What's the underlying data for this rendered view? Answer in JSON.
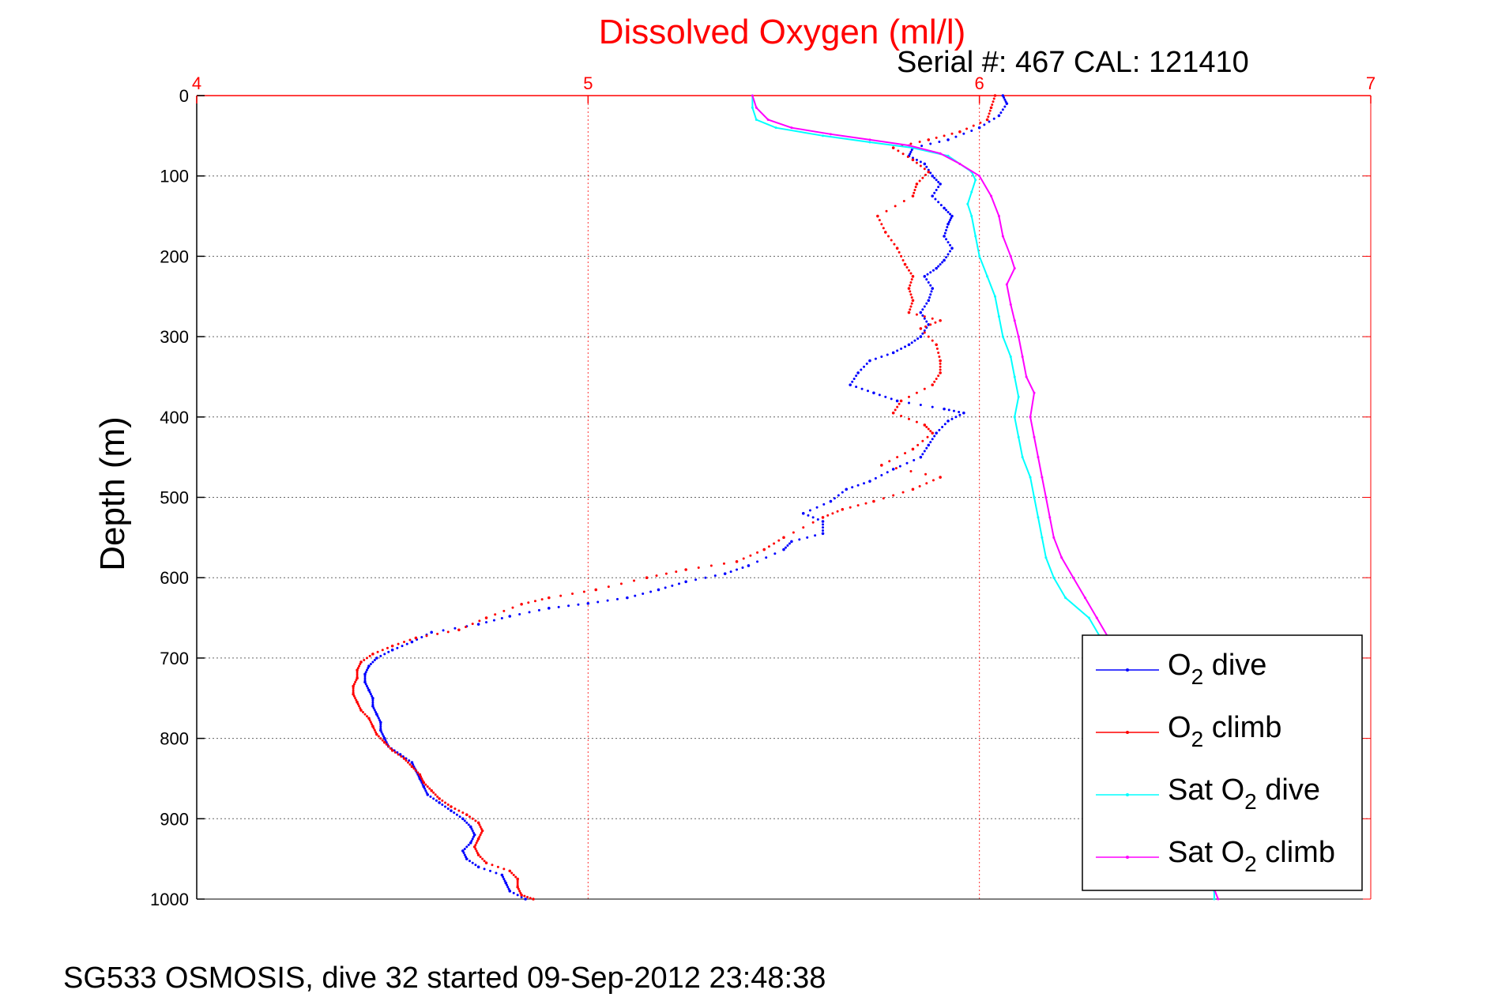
{
  "chart_data": {
    "type": "scatter",
    "title": "Dissolved Oxygen (ml/l)",
    "subtitle": "Serial #: 467  CAL: 121410",
    "ylabel": "Depth (m)",
    "footer": "SG533 OSMOSIS, dive 32 started 09-Sep-2012 23:48:38",
    "xlim": [
      4,
      7
    ],
    "ylim": [
      0,
      1000
    ],
    "y_reversed": true,
    "x_axis_position": "top",
    "grid": true,
    "legend_position": "bottom-right",
    "xticks": [
      "4",
      "5",
      "6",
      "7"
    ],
    "yticks": [
      "0",
      "100",
      "200",
      "300",
      "400",
      "500",
      "600",
      "700",
      "800",
      "900",
      "1000"
    ],
    "colors": {
      "title": "#ff0000",
      "x_axis": "#ff0000",
      "grid_x": "#ff0000",
      "o2_dive": "#0000ff",
      "o2_climb": "#ff0000",
      "sat_dive": "#00ffff",
      "sat_climb": "#ff00ff"
    },
    "series": [
      {
        "name": "O2 dive",
        "key": "o2_dive",
        "style": "dots",
        "points": [
          [
            6.06,
            0
          ],
          [
            6.07,
            10
          ],
          [
            6.05,
            25
          ],
          [
            6.0,
            40
          ],
          [
            5.92,
            55
          ],
          [
            5.83,
            65
          ],
          [
            5.82,
            75
          ],
          [
            5.86,
            85
          ],
          [
            5.88,
            100
          ],
          [
            5.9,
            110
          ],
          [
            5.88,
            125
          ],
          [
            5.91,
            140
          ],
          [
            5.93,
            150
          ],
          [
            5.92,
            160
          ],
          [
            5.91,
            175
          ],
          [
            5.93,
            190
          ],
          [
            5.91,
            205
          ],
          [
            5.89,
            215
          ],
          [
            5.86,
            225
          ],
          [
            5.88,
            240
          ],
          [
            5.87,
            255
          ],
          [
            5.85,
            270
          ],
          [
            5.87,
            285
          ],
          [
            5.85,
            300
          ],
          [
            5.82,
            310
          ],
          [
            5.78,
            320
          ],
          [
            5.72,
            330
          ],
          [
            5.69,
            345
          ],
          [
            5.67,
            360
          ],
          [
            5.73,
            370
          ],
          [
            5.79,
            380
          ],
          [
            5.91,
            390
          ],
          [
            5.96,
            395
          ],
          [
            5.92,
            405
          ],
          [
            5.89,
            420
          ],
          [
            5.87,
            435
          ],
          [
            5.85,
            450
          ],
          [
            5.78,
            465
          ],
          [
            5.72,
            480
          ],
          [
            5.66,
            490
          ],
          [
            5.62,
            505
          ],
          [
            5.55,
            520
          ],
          [
            5.6,
            530
          ],
          [
            5.6,
            545
          ],
          [
            5.52,
            555
          ],
          [
            5.5,
            565
          ],
          [
            5.41,
            585
          ],
          [
            5.35,
            595
          ],
          [
            5.25,
            605
          ],
          [
            5.18,
            615
          ],
          [
            5.1,
            625
          ],
          [
            5.0,
            632
          ],
          [
            4.9,
            638
          ],
          [
            4.8,
            648
          ],
          [
            4.72,
            658
          ],
          [
            4.6,
            668
          ],
          [
            4.55,
            680
          ],
          [
            4.5,
            690
          ],
          [
            4.46,
            700
          ],
          [
            4.44,
            710
          ],
          [
            4.43,
            720
          ],
          [
            4.43,
            730
          ],
          [
            4.44,
            740
          ],
          [
            4.45,
            750
          ],
          [
            4.45,
            760
          ],
          [
            4.46,
            770
          ],
          [
            4.47,
            780
          ],
          [
            4.47,
            790
          ],
          [
            4.48,
            800
          ],
          [
            4.49,
            810
          ],
          [
            4.52,
            820
          ],
          [
            4.55,
            830
          ],
          [
            4.56,
            840
          ],
          [
            4.57,
            850
          ],
          [
            4.58,
            860
          ],
          [
            4.59,
            870
          ],
          [
            4.62,
            880
          ],
          [
            4.65,
            890
          ],
          [
            4.68,
            900
          ],
          [
            4.7,
            910
          ],
          [
            4.71,
            920
          ],
          [
            4.7,
            930
          ],
          [
            4.68,
            940
          ],
          [
            4.69,
            950
          ],
          [
            4.72,
            960
          ],
          [
            4.78,
            970
          ],
          [
            4.79,
            980
          ],
          [
            4.8,
            990
          ],
          [
            4.84,
            1000
          ]
        ]
      },
      {
        "name": "O2 climb",
        "key": "o2_climb",
        "style": "dots",
        "points": [
          [
            6.04,
            0
          ],
          [
            6.03,
            15
          ],
          [
            6.02,
            30
          ],
          [
            5.95,
            45
          ],
          [
            5.87,
            55
          ],
          [
            5.78,
            65
          ],
          [
            5.83,
            80
          ],
          [
            5.87,
            95
          ],
          [
            5.84,
            110
          ],
          [
            5.83,
            125
          ],
          [
            5.74,
            150
          ],
          [
            5.76,
            170
          ],
          [
            5.79,
            190
          ],
          [
            5.81,
            210
          ],
          [
            5.83,
            225
          ],
          [
            5.82,
            240
          ],
          [
            5.83,
            255
          ],
          [
            5.82,
            270
          ],
          [
            5.9,
            280
          ],
          [
            5.85,
            290
          ],
          [
            5.89,
            310
          ],
          [
            5.9,
            330
          ],
          [
            5.9,
            345
          ],
          [
            5.88,
            360
          ],
          [
            5.8,
            380
          ],
          [
            5.78,
            395
          ],
          [
            5.86,
            410
          ],
          [
            5.88,
            420
          ],
          [
            5.83,
            440
          ],
          [
            5.75,
            460
          ],
          [
            5.9,
            475
          ],
          [
            5.83,
            490
          ],
          [
            5.73,
            505
          ],
          [
            5.65,
            515
          ],
          [
            5.6,
            525
          ],
          [
            5.5,
            550
          ],
          [
            5.45,
            565
          ],
          [
            5.38,
            580
          ],
          [
            5.25,
            590
          ],
          [
            5.15,
            600
          ],
          [
            5.02,
            615
          ],
          [
            4.9,
            625
          ],
          [
            4.83,
            633
          ],
          [
            4.74,
            650
          ],
          [
            4.67,
            665
          ],
          [
            4.56,
            675
          ],
          [
            4.5,
            685
          ],
          [
            4.45,
            695
          ],
          [
            4.42,
            705
          ],
          [
            4.41,
            715
          ],
          [
            4.41,
            725
          ],
          [
            4.4,
            735
          ],
          [
            4.4,
            745
          ],
          [
            4.41,
            755
          ],
          [
            4.42,
            765
          ],
          [
            4.44,
            775
          ],
          [
            4.45,
            785
          ],
          [
            4.46,
            795
          ],
          [
            4.48,
            805
          ],
          [
            4.5,
            815
          ],
          [
            4.53,
            825
          ],
          [
            4.55,
            835
          ],
          [
            4.57,
            845
          ],
          [
            4.58,
            855
          ],
          [
            4.6,
            865
          ],
          [
            4.62,
            875
          ],
          [
            4.65,
            885
          ],
          [
            4.69,
            895
          ],
          [
            4.72,
            905
          ],
          [
            4.73,
            915
          ],
          [
            4.72,
            925
          ],
          [
            4.71,
            935
          ],
          [
            4.72,
            945
          ],
          [
            4.74,
            955
          ],
          [
            4.8,
            965
          ],
          [
            4.82,
            975
          ],
          [
            4.82,
            985
          ],
          [
            4.83,
            995
          ],
          [
            4.86,
            1000
          ]
        ]
      },
      {
        "name": "Sat O2 dive",
        "key": "sat_dive",
        "style": "line",
        "points": [
          [
            5.42,
            0
          ],
          [
            5.42,
            15
          ],
          [
            5.43,
            30
          ],
          [
            5.48,
            40
          ],
          [
            5.6,
            50
          ],
          [
            5.72,
            58
          ],
          [
            5.83,
            65
          ],
          [
            5.92,
            75
          ],
          [
            5.95,
            85
          ],
          [
            5.98,
            95
          ],
          [
            5.99,
            105
          ],
          [
            5.98,
            120
          ],
          [
            5.97,
            135
          ],
          [
            5.98,
            150
          ],
          [
            5.99,
            175
          ],
          [
            6.0,
            200
          ],
          [
            6.02,
            225
          ],
          [
            6.04,
            250
          ],
          [
            6.05,
            275
          ],
          [
            6.06,
            300
          ],
          [
            6.08,
            325
          ],
          [
            6.09,
            350
          ],
          [
            6.1,
            375
          ],
          [
            6.09,
            400
          ],
          [
            6.1,
            425
          ],
          [
            6.11,
            450
          ],
          [
            6.13,
            475
          ],
          [
            6.14,
            500
          ],
          [
            6.15,
            525
          ],
          [
            6.16,
            550
          ],
          [
            6.17,
            575
          ],
          [
            6.19,
            600
          ],
          [
            6.22,
            625
          ],
          [
            6.28,
            650
          ],
          [
            6.31,
            675
          ],
          [
            6.35,
            700
          ],
          [
            6.4,
            740
          ],
          [
            6.45,
            800
          ],
          [
            6.5,
            870
          ],
          [
            6.56,
            940
          ],
          [
            6.6,
            990
          ],
          [
            6.6,
            1000
          ]
        ]
      },
      {
        "name": "Sat O2 climb",
        "key": "sat_climb",
        "style": "line",
        "points": [
          [
            5.42,
            0
          ],
          [
            5.43,
            15
          ],
          [
            5.46,
            30
          ],
          [
            5.52,
            40
          ],
          [
            5.62,
            48
          ],
          [
            5.72,
            55
          ],
          [
            5.82,
            62
          ],
          [
            5.9,
            72
          ],
          [
            5.95,
            85
          ],
          [
            6.0,
            100
          ],
          [
            6.03,
            125
          ],
          [
            6.05,
            150
          ],
          [
            6.06,
            175
          ],
          [
            6.08,
            200
          ],
          [
            6.09,
            215
          ],
          [
            6.07,
            235
          ],
          [
            6.08,
            260
          ],
          [
            6.09,
            280
          ],
          [
            6.1,
            300
          ],
          [
            6.11,
            325
          ],
          [
            6.12,
            350
          ],
          [
            6.14,
            370
          ],
          [
            6.13,
            400
          ],
          [
            6.14,
            425
          ],
          [
            6.15,
            450
          ],
          [
            6.16,
            475
          ],
          [
            6.17,
            500
          ],
          [
            6.18,
            525
          ],
          [
            6.19,
            550
          ],
          [
            6.21,
            575
          ],
          [
            6.24,
            600
          ],
          [
            6.27,
            625
          ],
          [
            6.3,
            650
          ],
          [
            6.33,
            675
          ],
          [
            6.37,
            700
          ],
          [
            6.42,
            750
          ],
          [
            6.47,
            810
          ],
          [
            6.52,
            880
          ],
          [
            6.57,
            950
          ],
          [
            6.61,
            1000
          ]
        ]
      }
    ]
  },
  "legend": {
    "entries": [
      {
        "key": "o2_dive",
        "prefix": "O",
        "sub": "2",
        "suffix": " dive"
      },
      {
        "key": "o2_climb",
        "prefix": "O",
        "sub": "2",
        "suffix": " climb"
      },
      {
        "key": "sat_dive",
        "prefix": "Sat O",
        "sub": "2",
        "suffix": " dive"
      },
      {
        "key": "sat_climb",
        "prefix": "Sat O",
        "sub": "2",
        "suffix": " climb"
      }
    ]
  }
}
